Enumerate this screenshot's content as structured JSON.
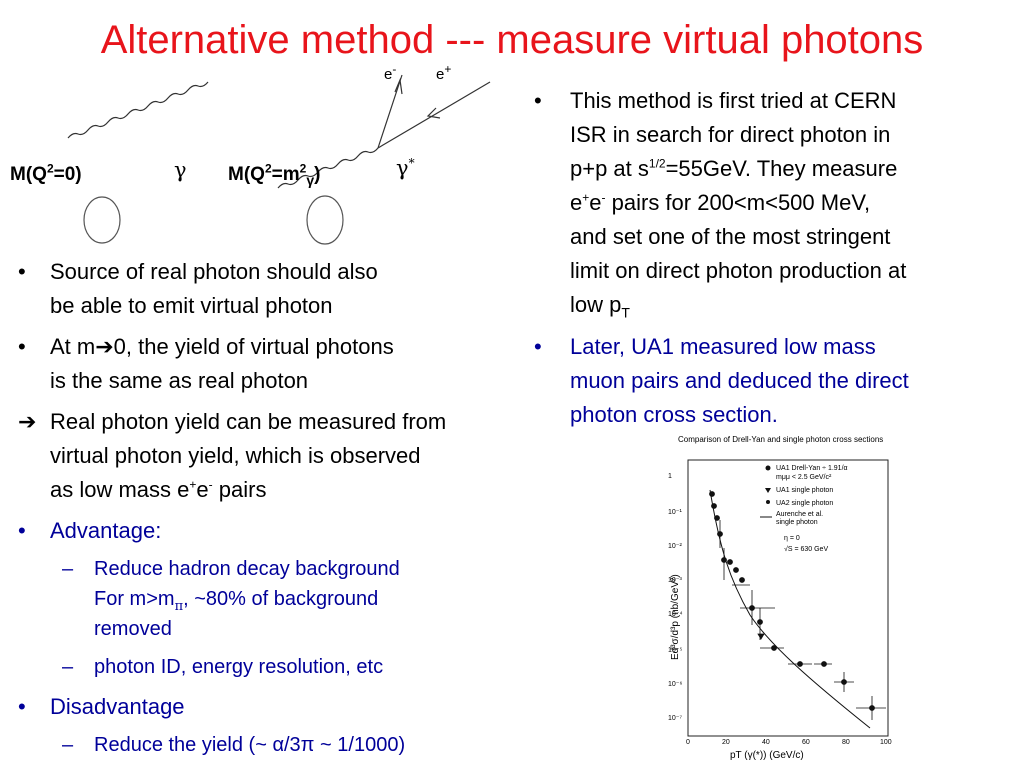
{
  "title": "Alternative method --- measure virtual photons",
  "diagram": {
    "real_label": "M(Q",
    "real_label_sup": "2",
    "real_label_end": "=0)",
    "real_gamma": "γ",
    "virt_label": "M(Q",
    "virt_label_sup": "2",
    "virt_label_mid": "=m",
    "virt_label_sup2": "2",
    "virt_label_sub": "γ",
    "virt_label_end": ")",
    "virt_gamma": "γ",
    "virt_gamma_sup": "*",
    "e_minus": "e",
    "e_minus_sup": "-",
    "e_plus": "e",
    "e_plus_sup": "+"
  },
  "left_bullets": {
    "b1_marker": "•",
    "b1_line1": "Source of real photon should also",
    "b1_line2": "be able to emit virtual photon",
    "b2_marker": "•",
    "b2_line1a": "At m",
    "b2_arrow": "➔",
    "b2_line1b": "0, the yield of virtual photons",
    "b2_line2": "is the same as real photon",
    "b3_marker": "➔",
    "b3_line1": "Real photon yield can be measured from",
    "b3_line2": "virtual photon yield, which is observed",
    "b3_line3a": "as low mass e",
    "b3_sup1": "+",
    "b3_line3b": "e",
    "b3_sup2": "-",
    "b3_line3c": " pairs",
    "b4_marker": "•",
    "b4_label": "Advantage:",
    "s1_marker": "–",
    "s1_line1": "Reduce hadron decay background",
    "s1_line2a": "For m>m",
    "s1_pi": "π",
    "s1_line2b": ", ~80% of background",
    "s1_line3": "removed",
    "s2_marker": "–",
    "s2_line1": "photon ID, energy resolution, etc",
    "b5_marker": "•",
    "b5_label": "Disadvantage",
    "s3_marker": "–",
    "s3_line1": "Reduce the yield  (~ α/3π ~ 1/1000)"
  },
  "right_bullets": {
    "r1_marker": "•",
    "r1_line1": "This method is first tried at CERN",
    "r1_line2": "ISR in search for direct photon in",
    "r1_line3a": "p+p at s",
    "r1_sup": "1/2",
    "r1_line3b": "=55GeV. They measure",
    "r1_line4a": "e",
    "r1_sup2": "+",
    "r1_line4b": "e",
    "r1_sup3": "-",
    "r1_line4c": " pairs for 200<m<500 MeV,",
    "r1_line5": "and set one of the most stringent",
    "r1_line6": "limit on direct photon production at",
    "r1_line7a": "low p",
    "r1_sub": "T",
    "r2_marker": "•",
    "r2_line1": "Later, UA1 measured low mass",
    "r2_line2": "muon pairs and deduced the direct",
    "r2_line3": "photon cross section."
  },
  "plot": {
    "title": "Comparison of  Drell-Yan and single photon cross sections",
    "ylabel": "Ed³σ/d³p  (nb/GeV²)",
    "xlabel": "pT (γ(*))    (GeV/c)",
    "legend": [
      "UA1  Drell-Yan ÷ 1.91/α",
      "mμμ < 2.5 GeV/c²",
      "UA1  single photon",
      "UA2  single photon",
      "Aurenche et al.",
      "single photon",
      "η = 0",
      "√S = 630 GeV"
    ],
    "x_ticks": [
      "0",
      "20",
      "40",
      "60",
      "80",
      "100"
    ],
    "y_ticks": [
      "1",
      "10⁻¹",
      "10⁻²",
      "10⁻³",
      "10⁻⁴",
      "10⁻⁵",
      "10⁻⁶",
      "10⁻⁷"
    ]
  },
  "colors": {
    "title": "#e8141b",
    "navy": "#000099",
    "text": "#000000"
  }
}
